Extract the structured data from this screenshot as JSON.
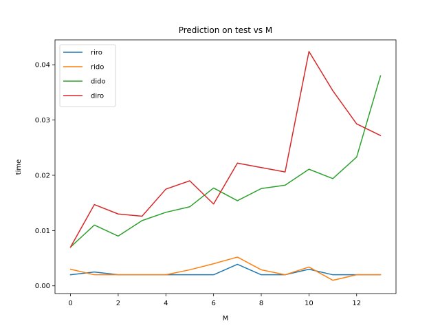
{
  "chart_data": {
    "type": "line",
    "title": "Prediction on test vs M",
    "xlabel": "M",
    "ylabel": "time",
    "xlim": [
      -0.65,
      13.65
    ],
    "ylim": [
      -0.0014,
      0.0445
    ],
    "xticks": [
      0,
      2,
      4,
      6,
      8,
      10,
      12
    ],
    "yticks": [
      0.0,
      0.01,
      0.02,
      0.03,
      0.04
    ],
    "ytick_labels": [
      "0.00",
      "0.01",
      "0.02",
      "0.03",
      "0.04"
    ],
    "grid": false,
    "legend_position": "top-left",
    "x": [
      0,
      1,
      2,
      3,
      4,
      5,
      6,
      7,
      8,
      9,
      10,
      11,
      12,
      13
    ],
    "series": [
      {
        "name": "riro",
        "color": "#1f77b4",
        "values": [
          0.002,
          0.0025,
          0.002,
          0.002,
          0.002,
          0.002,
          0.002,
          0.0039,
          0.002,
          0.002,
          0.003,
          0.002,
          0.002,
          0.002
        ]
      },
      {
        "name": "rido",
        "color": "#ff7f0e",
        "values": [
          0.003,
          0.002,
          0.002,
          0.002,
          0.002,
          0.0029,
          0.004,
          0.0052,
          0.0029,
          0.002,
          0.0034,
          0.001,
          0.002,
          0.002
        ]
      },
      {
        "name": "dido",
        "color": "#2ca02c",
        "values": [
          0.007,
          0.011,
          0.009,
          0.0118,
          0.0133,
          0.0143,
          0.0177,
          0.0154,
          0.0176,
          0.0182,
          0.0211,
          0.0194,
          0.0233,
          0.038
        ]
      },
      {
        "name": "diro",
        "color": "#d62728",
        "values": [
          0.007,
          0.0147,
          0.013,
          0.0126,
          0.0175,
          0.019,
          0.0148,
          0.0222,
          0.0214,
          0.0206,
          0.0424,
          0.0353,
          0.0293,
          0.0272
        ]
      }
    ]
  }
}
